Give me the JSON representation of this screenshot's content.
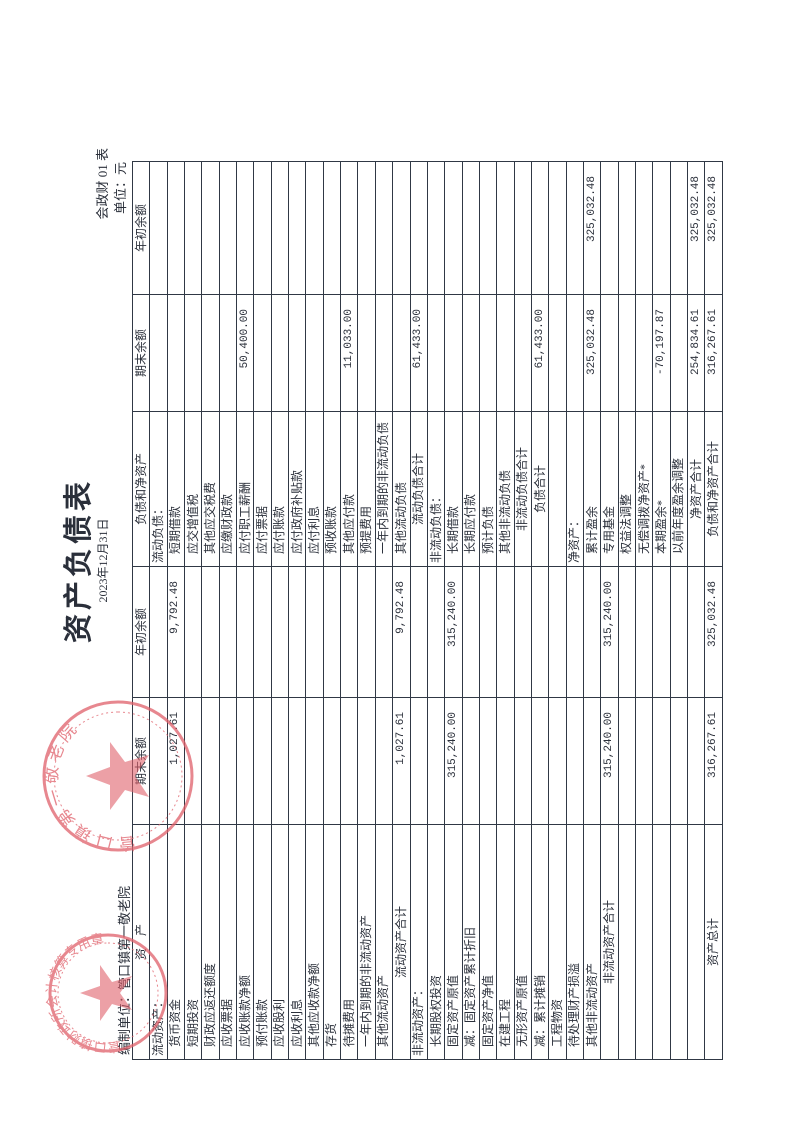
{
  "document": {
    "title": "资产负债表",
    "date": "2023年12月31日",
    "form_no": "会政财 01 表",
    "unit": "单位：元",
    "org": "编制单位：管口镇第一敬老院"
  },
  "table": {
    "headers": [
      "资　产",
      "期末余额",
      "年初余额",
      "负债和净资产",
      "期末余额",
      "年初余额"
    ],
    "rows": [
      [
        {
          "t": "流动资产：",
          "s": "sec"
        },
        "",
        "",
        {
          "t": "流动负债：",
          "s": "sec"
        },
        "",
        ""
      ],
      [
        {
          "t": "货币资金",
          "s": "indent"
        },
        "1,027.61",
        "9,792.48",
        {
          "t": "短期借款",
          "s": "indent"
        },
        "",
        ""
      ],
      [
        {
          "t": "短期投资",
          "s": "indent"
        },
        "",
        "",
        {
          "t": "应交增值税",
          "s": "indent"
        },
        "",
        ""
      ],
      [
        {
          "t": "财政应返还额度",
          "s": "indent"
        },
        "",
        "",
        {
          "t": "其他应交税费",
          "s": "indent"
        },
        "",
        ""
      ],
      [
        {
          "t": "应收票据",
          "s": "indent"
        },
        "",
        "",
        {
          "t": "应缴财政款",
          "s": "indent"
        },
        "",
        ""
      ],
      [
        {
          "t": "应收账款净额",
          "s": "indent"
        },
        "",
        "",
        {
          "t": "应付职工薪酬",
          "s": "indent"
        },
        "50,400.00",
        ""
      ],
      [
        {
          "t": "预付账款",
          "s": "indent"
        },
        "",
        "",
        {
          "t": "应付票据",
          "s": "indent"
        },
        "",
        ""
      ],
      [
        {
          "t": "应收股利",
          "s": "indent"
        },
        "",
        "",
        {
          "t": "应付账款",
          "s": "indent"
        },
        "",
        ""
      ],
      [
        {
          "t": "应收利息",
          "s": "indent"
        },
        "",
        "",
        {
          "t": "应付政府补贴款",
          "s": "indent"
        },
        "",
        ""
      ],
      [
        {
          "t": "其他应收款净额",
          "s": "indent"
        },
        "",
        "",
        {
          "t": "应付利息",
          "s": "indent"
        },
        "",
        ""
      ],
      [
        {
          "t": "存货",
          "s": "indent"
        },
        "",
        "",
        {
          "t": "预收账款",
          "s": "indent"
        },
        "",
        ""
      ],
      [
        {
          "t": "待摊费用",
          "s": "indent"
        },
        "",
        "",
        {
          "t": "其他应付款",
          "s": "indent"
        },
        "11,033.00",
        ""
      ],
      [
        {
          "t": "一年内到期的非流动资产",
          "s": "indent"
        },
        "",
        "",
        {
          "t": "预提费用",
          "s": "indent"
        },
        "",
        ""
      ],
      [
        {
          "t": "其他流动资产",
          "s": "indent"
        },
        "",
        "",
        {
          "t": "一年内到期的非流动负债",
          "s": "indent"
        },
        "",
        ""
      ],
      [
        {
          "t": "流动资产合计",
          "s": "center"
        },
        "1,027.61",
        "9,792.48",
        {
          "t": "其他流动负债",
          "s": "indent"
        },
        "",
        ""
      ],
      [
        {
          "t": "非流动资产：",
          "s": "sec"
        },
        "",
        "",
        {
          "t": "流动负债合计",
          "s": "center"
        },
        "61,433.00",
        ""
      ],
      [
        {
          "t": "长期股权投资",
          "s": "indent"
        },
        "",
        "",
        {
          "t": "非流动负债：",
          "s": "sec"
        },
        "",
        ""
      ],
      [
        {
          "t": "固定资产原值",
          "s": "indent"
        },
        "315,240.00",
        "315,240.00",
        {
          "t": "长期借款",
          "s": "indent"
        },
        "",
        ""
      ],
      [
        {
          "t": "减：固定资产累计折旧",
          "s": "indent"
        },
        "",
        "",
        {
          "t": "长期应付款",
          "s": "indent"
        },
        "",
        ""
      ],
      [
        {
          "t": "固定资产净值",
          "s": "indent"
        },
        "",
        "",
        {
          "t": "预计负债",
          "s": "indent"
        },
        "",
        ""
      ],
      [
        {
          "t": "在建工程",
          "s": "indent"
        },
        "",
        "",
        {
          "t": "其他非流动负债",
          "s": "indent"
        },
        "",
        ""
      ],
      [
        {
          "t": "无形资产原值",
          "s": "indent"
        },
        "",
        "",
        {
          "t": "非流动负债合计",
          "s": "center"
        },
        "",
        ""
      ],
      [
        {
          "t": "减：累计摊销",
          "s": "indent"
        },
        "",
        "",
        {
          "t": "负债合计",
          "s": "center"
        },
        "61,433.00",
        ""
      ],
      [
        {
          "t": "工程物资",
          "s": "indent"
        },
        "",
        "",
        {
          "t": "",
          "s": "indent"
        },
        "",
        ""
      ],
      [
        {
          "t": "待处理财产损溢",
          "s": "indent"
        },
        "",
        "",
        {
          "t": "净资产：",
          "s": "sec"
        },
        "",
        ""
      ],
      [
        {
          "t": "其他非流动资产",
          "s": "indent"
        },
        "",
        "",
        {
          "t": "累计盈余",
          "s": "indent"
        },
        "325,032.48",
        "325,032.48"
      ],
      [
        {
          "t": "非流动资产合计",
          "s": "center"
        },
        "315,240.00",
        "315,240.00",
        {
          "t": "专用基金",
          "s": "indent"
        },
        "",
        ""
      ],
      [
        {
          "t": "",
          "s": "indent"
        },
        "",
        "",
        {
          "t": "权益法调整",
          "s": "indent"
        },
        "",
        ""
      ],
      [
        {
          "t": "",
          "s": "indent"
        },
        "",
        "",
        {
          "t": "无偿调拨净资产*",
          "s": "indent"
        },
        "",
        ""
      ],
      [
        {
          "t": "",
          "s": "indent"
        },
        "",
        "",
        {
          "t": "本期盈余*",
          "s": "indent"
        },
        "-70,197.87",
        ""
      ],
      [
        {
          "t": "",
          "s": "indent"
        },
        "",
        "",
        {
          "t": "以前年度盈余调整",
          "s": "indent"
        },
        "",
        ""
      ],
      [
        {
          "t": "",
          "s": "indent"
        },
        "",
        "",
        {
          "t": "净资产合计",
          "s": "center"
        },
        "254,834.61",
        "325,032.48"
      ],
      [
        {
          "t": "资产总计",
          "s": "center"
        },
        "316,267.61",
        "325,032.48",
        {
          "t": "负债和净资产合计",
          "s": "center"
        },
        "316,267.61",
        "325,032.48"
      ]
    ]
  },
  "stamps": [
    {
      "text": "管口镇财政所会计核算专用章",
      "color": "#e0606a"
    },
    {
      "text": "管口镇第一敬老院",
      "color": "#e0606a"
    }
  ]
}
